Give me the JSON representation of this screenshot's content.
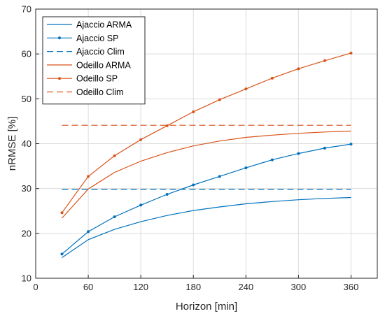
{
  "chart_data": {
    "type": "line",
    "title": "",
    "xlabel": "Horizon [min]",
    "ylabel": "nRMSE [%]",
    "xlim": [
      0,
      390
    ],
    "ylim": [
      10,
      70
    ],
    "xticks": [
      0,
      60,
      120,
      180,
      240,
      300,
      360
    ],
    "yticks": [
      10,
      20,
      30,
      40,
      50,
      60,
      70
    ],
    "grid": true,
    "legend_position": "top-left",
    "x": [
      30,
      60,
      90,
      120,
      150,
      180,
      210,
      240,
      270,
      300,
      330,
      360
    ],
    "series": [
      {
        "name": "Ajaccio ARMA",
        "color": "#0072BD",
        "style": "solid",
        "marker": "none",
        "values": [
          14.6,
          18.6,
          20.9,
          22.6,
          24.0,
          25.1,
          25.9,
          26.6,
          27.1,
          27.5,
          27.8,
          28.0
        ]
      },
      {
        "name": "Ajaccio SP",
        "color": "#0072BD",
        "style": "solid",
        "marker": "dot",
        "values": [
          15.4,
          20.4,
          23.7,
          26.3,
          28.7,
          30.8,
          32.7,
          34.6,
          36.4,
          37.8,
          39.0,
          39.9
        ]
      },
      {
        "name": "Ajaccio Clim",
        "color": "#0072BD",
        "style": "dashed",
        "marker": "none",
        "values": [
          29.8,
          29.8,
          29.8,
          29.8,
          29.8,
          29.8,
          29.8,
          29.8,
          29.8,
          29.8,
          29.8,
          29.8
        ]
      },
      {
        "name": "Odeillo ARMA",
        "color": "#D95319",
        "style": "solid",
        "marker": "none",
        "values": [
          23.4,
          29.9,
          33.6,
          36.1,
          38.0,
          39.5,
          40.6,
          41.4,
          41.9,
          42.3,
          42.6,
          42.8
        ]
      },
      {
        "name": "Odeillo SP",
        "color": "#D95319",
        "style": "solid",
        "marker": "dot",
        "values": [
          24.6,
          32.7,
          37.3,
          40.9,
          44.0,
          47.1,
          49.8,
          52.2,
          54.6,
          56.7,
          58.5,
          60.2
        ]
      },
      {
        "name": "Odeillo Clim",
        "color": "#D95319",
        "style": "dashed",
        "marker": "none",
        "values": [
          44.1,
          44.1,
          44.1,
          44.1,
          44.1,
          44.1,
          44.1,
          44.1,
          44.1,
          44.1,
          44.1,
          44.1
        ]
      }
    ]
  }
}
